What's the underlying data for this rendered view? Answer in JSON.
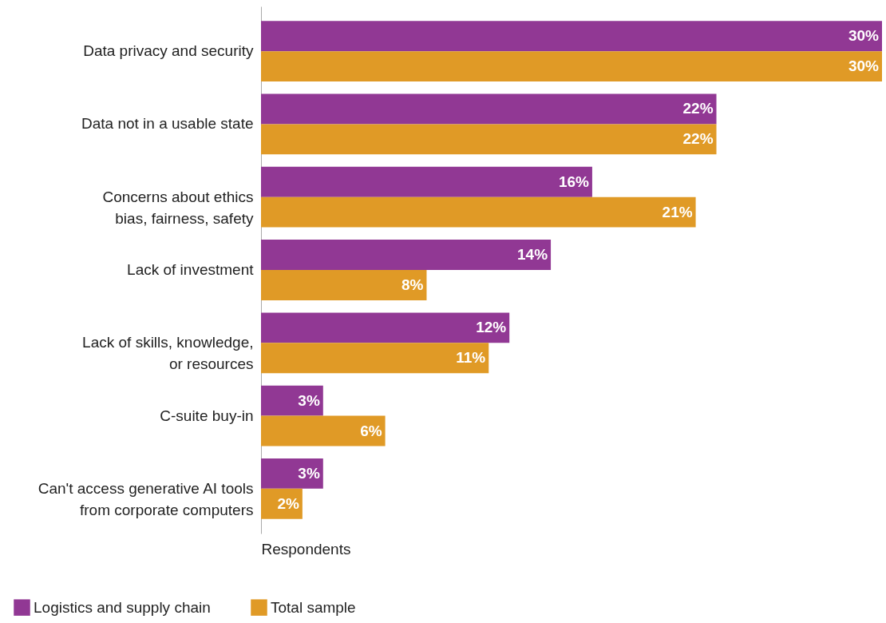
{
  "chart_data": {
    "type": "bar",
    "orientation": "horizontal",
    "xlabel": "Respondents",
    "categories": [
      "Data privacy and security",
      "Data not in a usable state",
      "Concerns about ethics\nbias, fairness, safety",
      "Lack of investment",
      "Lack of skills, knowledge,\nor resources",
      "C-suite buy-in",
      "Can't access generative AI tools\nfrom corporate computers"
    ],
    "series": [
      {
        "name": "Logistics and supply chain",
        "color": "#913894",
        "values": [
          30,
          22,
          16,
          14,
          12,
          3,
          3
        ],
        "value_labels": [
          "30%",
          "22%",
          "16%",
          "14%",
          "12%",
          "3%",
          "3%"
        ]
      },
      {
        "name": "Total sample",
        "color": "#e09a26",
        "values": [
          30,
          22,
          21,
          8,
          11,
          6,
          2
        ],
        "value_labels": [
          "30%",
          "22%",
          "21%",
          "8%",
          "11%",
          "6%",
          "2%"
        ]
      }
    ],
    "legend": "bottom",
    "tick_labels": "y",
    "grid": false
  }
}
